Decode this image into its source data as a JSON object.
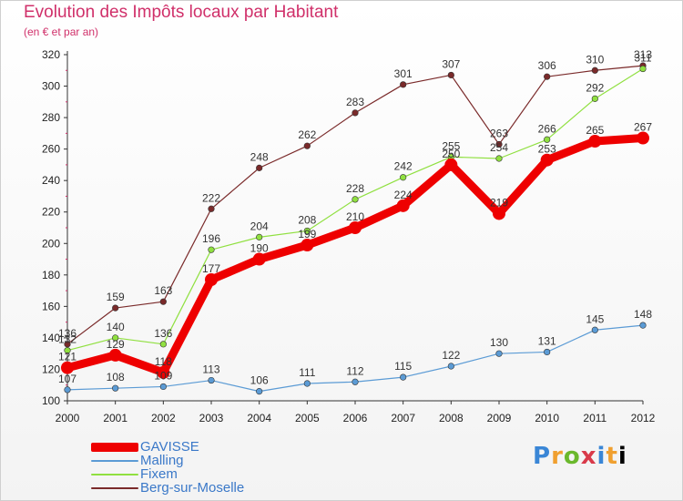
{
  "header": {
    "title": "Evolution des Impôts locaux par Habitant",
    "subtitle": "(en € et par an)"
  },
  "logo": {
    "text": "Proxiti"
  },
  "chart_data": {
    "type": "line",
    "title": "Evolution des Impôts locaux par Habitant",
    "subtitle": "(en € et par an)",
    "xlabel": "",
    "ylabel": "",
    "x": [
      "2000",
      "2001",
      "2002",
      "2003",
      "2004",
      "2005",
      "2006",
      "2007",
      "2008",
      "2009",
      "2010",
      "2011",
      "2012"
    ],
    "ylim": [
      100,
      320
    ],
    "yticks": [
      100,
      120,
      140,
      160,
      180,
      200,
      220,
      240,
      260,
      280,
      300,
      320
    ],
    "grid": false,
    "legend_position": "bottom-left",
    "series": [
      {
        "name": "GAVISSE",
        "color": "#ee0000",
        "values": [
          121,
          129,
          118,
          177,
          190,
          199,
          210,
          224,
          250,
          219,
          253,
          265,
          267
        ],
        "labels": [
          "121",
          "129",
          "118",
          "177",
          "190",
          "199",
          "210",
          "224",
          "250",
          "219",
          "253",
          "265",
          "267"
        ]
      },
      {
        "name": "Malling",
        "color": "#5b9bd5",
        "values": [
          107,
          108,
          109,
          113,
          106,
          111,
          112,
          115,
          122,
          130,
          131,
          145,
          148
        ],
        "labels": [
          "107",
          "108",
          "109",
          "113",
          "106",
          "111",
          "112",
          "115",
          "122",
          "130",
          "131",
          "145",
          "148"
        ]
      },
      {
        "name": "Fixem",
        "color": "#90e040",
        "values": [
          132,
          140,
          136,
          196,
          204,
          208,
          228,
          242,
          255,
          254,
          266,
          292,
          311
        ],
        "labels": [
          "132",
          "140",
          "136",
          "196",
          "204",
          "208",
          "228",
          "242",
          "255",
          "254",
          "266",
          "292",
          "311"
        ]
      },
      {
        "name": "Berg-sur-Moselle",
        "color": "#7a2a2a",
        "values": [
          136,
          159,
          163,
          222,
          248,
          262,
          283,
          301,
          307,
          263,
          306,
          310,
          313
        ],
        "labels": [
          "136",
          "159",
          "163",
          "222",
          "248",
          "262",
          "283",
          "301",
          "307",
          "263",
          "306",
          "310",
          "313"
        ]
      }
    ]
  }
}
